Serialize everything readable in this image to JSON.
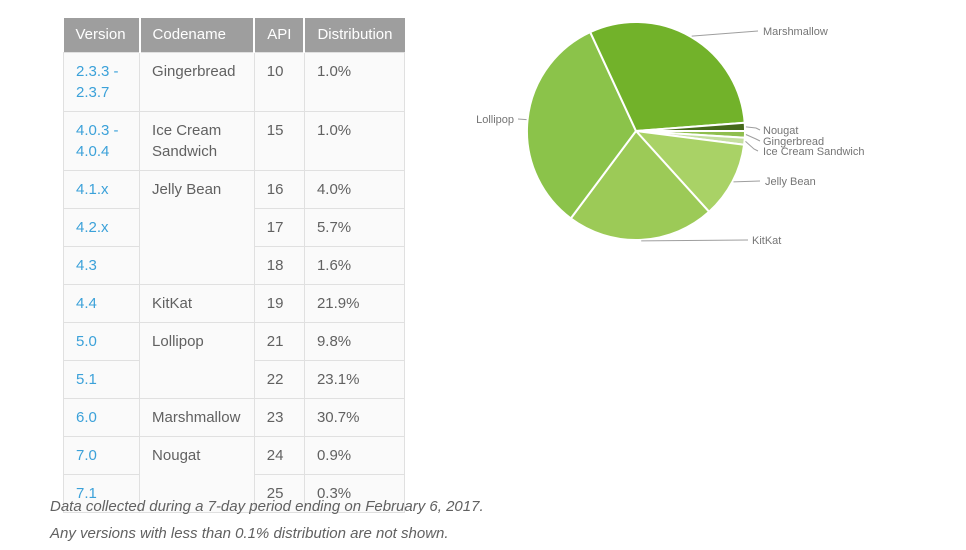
{
  "table": {
    "headers": [
      "Version",
      "Codename",
      "API",
      "Distribution"
    ],
    "rows": [
      {
        "version": "2.3.3 - 2.3.7",
        "codename": "Gingerbread",
        "api": "10",
        "distribution": "1.0%"
      },
      {
        "version": "4.0.3 - 4.0.4",
        "codename": "Ice Cream Sandwich",
        "api": "15",
        "distribution": "1.0%"
      },
      {
        "version": "4.1.x",
        "codename": "Jelly Bean",
        "api": "16",
        "distribution": "4.0%"
      },
      {
        "version": "4.2.x",
        "codename": "",
        "api": "17",
        "distribution": "5.7%"
      },
      {
        "version": "4.3",
        "codename": "",
        "api": "18",
        "distribution": "1.6%"
      },
      {
        "version": "4.4",
        "codename": "KitKat",
        "api": "19",
        "distribution": "21.9%"
      },
      {
        "version": "5.0",
        "codename": "Lollipop",
        "api": "21",
        "distribution": "9.8%"
      },
      {
        "version": "5.1",
        "codename": "",
        "api": "22",
        "distribution": "23.1%"
      },
      {
        "version": "6.0",
        "codename": "Marshmallow",
        "api": "23",
        "distribution": "30.7%"
      },
      {
        "version": "7.0",
        "codename": "Nougat",
        "api": "24",
        "distribution": "0.9%"
      },
      {
        "version": "7.1",
        "codename": "",
        "api": "25",
        "distribution": "0.3%"
      }
    ]
  },
  "chart_data": {
    "type": "pie",
    "title": "",
    "start_angle_deg_from_east": 0,
    "direction": "clockwise",
    "legend_position": "outside-callouts",
    "slices": [
      {
        "label": "Gingerbread",
        "value": 1.0,
        "color": "#8fbe4e"
      },
      {
        "label": "Ice Cream Sandwich",
        "value": 1.0,
        "color": "#c5dfa0"
      },
      {
        "label": "Jelly Bean",
        "value": 11.3,
        "color": "#a9d266"
      },
      {
        "label": "KitKat",
        "value": 21.9,
        "color": "#9cca57"
      },
      {
        "label": "Lollipop",
        "value": 32.9,
        "color": "#8bc34a"
      },
      {
        "label": "Marshmallow",
        "value": 30.7,
        "color": "#72b22a"
      },
      {
        "label": "Nougat",
        "value": 1.2,
        "color": "#45691b"
      }
    ]
  },
  "footer": {
    "line1": "Data collected during a 7-day period ending on February 6, 2017.",
    "line2": "Any versions with less than 0.1% distribution are not shown."
  },
  "colors": {
    "link": "#3ba1d9",
    "header_bg": "#9e9e9e",
    "row_bg": "#fafafa",
    "border": "#e0e0e0",
    "text": "#616161",
    "pie_label": "#757575",
    "connector": "#9e9e9e",
    "slice_divider": "#ffffff"
  }
}
